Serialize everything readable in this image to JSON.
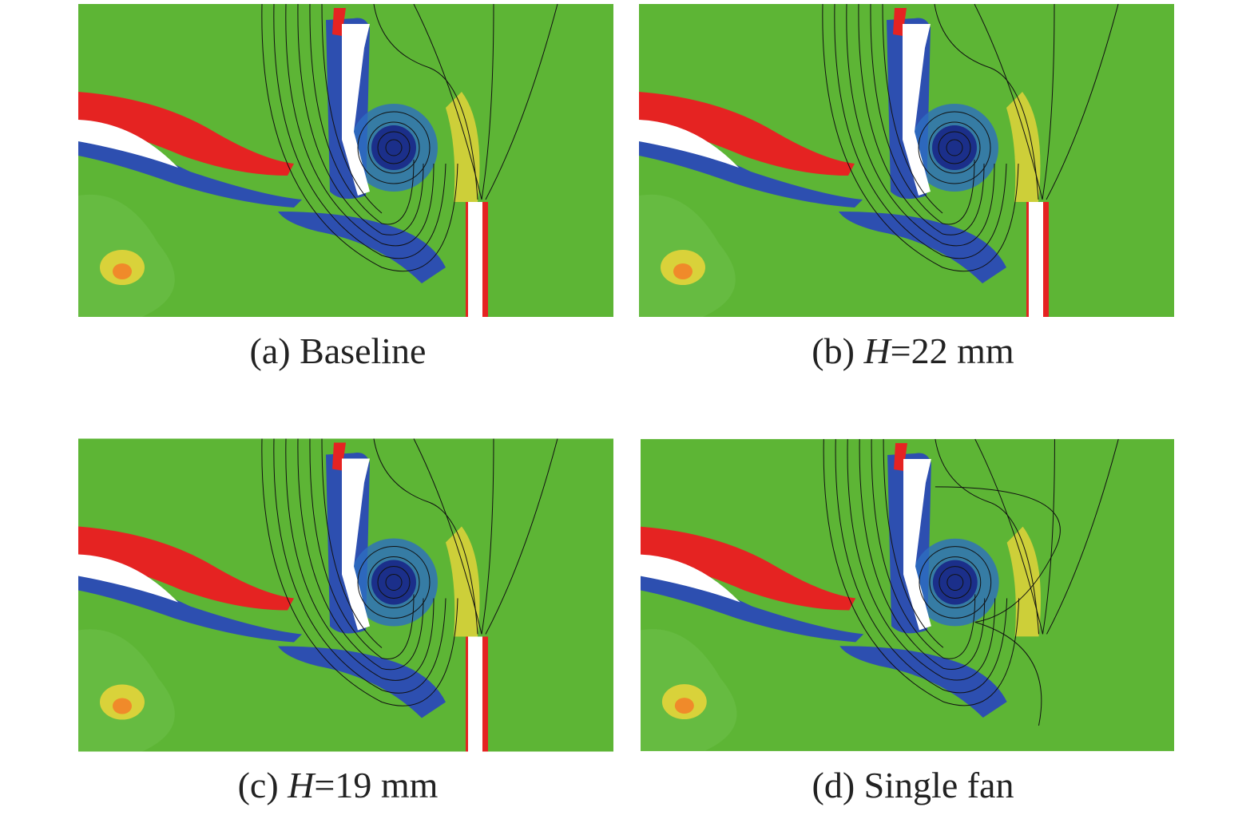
{
  "panels": [
    {
      "label": "(a)",
      "text": "Baseline"
    },
    {
      "label": "(b)",
      "variable": "H",
      "text": "=22 mm"
    },
    {
      "label": "(c)",
      "variable": "H",
      "text": "=19 mm"
    },
    {
      "label": "(d)",
      "text": "Single fan"
    }
  ]
}
